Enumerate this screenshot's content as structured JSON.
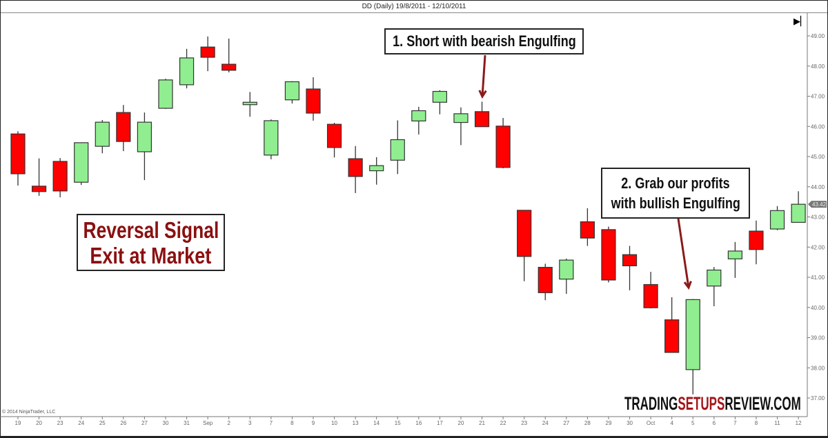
{
  "header": {
    "title": "DD (Daily)  19/8/2011 - 12/10/2011"
  },
  "copyright": "© 2014 NinjaTrader, LLC",
  "scroll_end_icon": "skip-to-end-icon",
  "annotations": {
    "short": "1. Short with bearish Engulfing",
    "grab_line1": "2. Grab our profits",
    "grab_line2": "with bullish Engulfing",
    "signal_line1": "Reversal Signal",
    "signal_line2": "Exit at Market"
  },
  "logo": {
    "part1": "TRADING",
    "part2": "SETUPS",
    "part3": "REVIEW.COM"
  },
  "colors": {
    "up": "#90ee90",
    "down": "#ff0000",
    "annotation_text": "#8b1010",
    "arrow": "#8b1a1a"
  },
  "chart_data": {
    "type": "candlestick",
    "title": "DD (Daily)  19/8/2011 - 12/10/2011",
    "ylim": [
      36.7,
      49.4
    ],
    "y_ticks": [
      "49.00",
      "48.00",
      "47.00",
      "46.00",
      "45.00",
      "44.00",
      "43.00",
      "42.00",
      "41.00",
      "40.00",
      "39.00",
      "38.00",
      "37.00"
    ],
    "last_price_label": "43.42",
    "grid": false,
    "categories": [
      "19",
      "20",
      "23",
      "24",
      "25",
      "26",
      "27",
      "30",
      "31",
      "Sep",
      "2",
      "3",
      "7",
      "8",
      "9",
      "10",
      "13",
      "14",
      "15",
      "16",
      "17",
      "20",
      "21",
      "22",
      "23",
      "24",
      "27",
      "28",
      "29",
      "30",
      "Oct",
      "4",
      "5",
      "6",
      "7",
      "8",
      "11",
      "12"
    ],
    "open": [
      45.75,
      44.02,
      44.84,
      44.15,
      45.34,
      46.46,
      45.16,
      46.6,
      47.38,
      48.63,
      48.06,
      46.72,
      45.05,
      46.88,
      47.24,
      46.07,
      44.93,
      44.53,
      44.88,
      46.18,
      46.8,
      46.13,
      46.49,
      46.01,
      43.22,
      41.33,
      40.94,
      42.84,
      42.58,
      41.75,
      40.76,
      39.59,
      37.94,
      40.71,
      41.61,
      42.53,
      42.6,
      42.82
    ],
    "high": [
      45.84,
      44.94,
      44.95,
      45.46,
      46.21,
      46.71,
      46.46,
      47.58,
      48.57,
      48.98,
      48.91,
      47.14,
      46.23,
      47.5,
      47.63,
      46.12,
      45.35,
      44.98,
      46.2,
      46.65,
      47.2,
      46.63,
      46.82,
      46.28,
      43.22,
      41.45,
      41.62,
      43.29,
      42.68,
      42.04,
      41.18,
      40.34,
      40.28,
      41.34,
      42.17,
      42.88,
      43.36,
      43.85
    ],
    "low": [
      44.04,
      43.7,
      43.65,
      44.06,
      45.11,
      45.18,
      44.22,
      46.58,
      47.26,
      47.83,
      47.79,
      46.32,
      44.91,
      46.76,
      46.19,
      44.97,
      43.79,
      44.07,
      44.42,
      45.73,
      46.4,
      45.38,
      45.98,
      44.61,
      40.87,
      40.24,
      40.45,
      42.04,
      40.83,
      40.57,
      39.97,
      38.51,
      37.12,
      40.04,
      40.98,
      41.43,
      42.56,
      42.91
    ],
    "close": [
      44.43,
      43.84,
      43.86,
      45.46,
      46.14,
      45.5,
      46.14,
      47.54,
      48.27,
      48.29,
      47.86,
      46.8,
      46.19,
      47.48,
      46.44,
      45.3,
      44.34,
      44.7,
      45.56,
      46.52,
      47.16,
      46.42,
      45.99,
      44.64,
      41.69,
      40.49,
      41.57,
      42.3,
      40.91,
      41.38,
      39.99,
      38.51,
      40.26,
      41.24,
      41.87,
      41.92,
      43.21,
      43.42
    ]
  }
}
